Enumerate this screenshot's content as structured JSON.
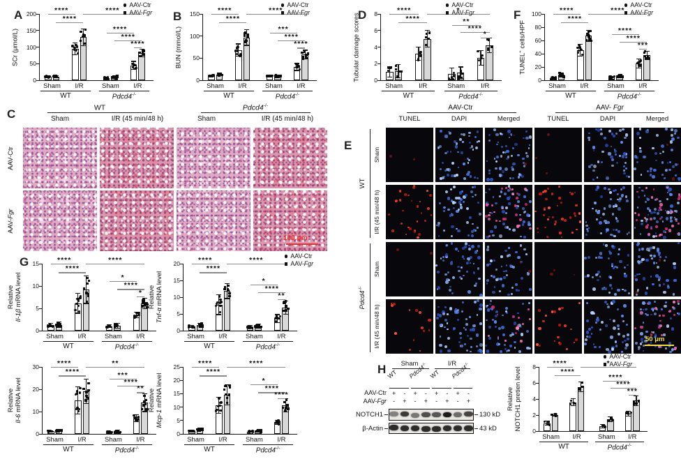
{
  "figure": {
    "bg": "#ffffff",
    "scalebar_red": "#e8332a",
    "scalebar_yellow": "#f0e040",
    "bar_ctr_fill": "#ffffff",
    "bar_fgr_fill": "#d8d8d8"
  },
  "legend": {
    "ctr_label": "AAV-Ctr",
    "fgr_prefix": "AAV-",
    "fgr_gene": "Fgr"
  },
  "xaxis": {
    "conditions": [
      "Sham",
      "I/R",
      "Sham",
      "I/R"
    ],
    "genotypes": [
      {
        "label": "WT",
        "italic": false,
        "sup": ""
      },
      {
        "label": "Pdcd4",
        "italic": true,
        "sup": "-/-"
      }
    ]
  },
  "panels": {
    "A": {
      "label": "A"
    },
    "B": {
      "label": "B"
    },
    "D": {
      "label": "D"
    },
    "F": {
      "label": "F"
    },
    "G": {
      "label": "G"
    },
    "C": {
      "label": "C",
      "group_headers": [
        {
          "label": "WT",
          "italic": false,
          "sup": ""
        },
        {
          "label": "Pdcd4",
          "italic": true,
          "sup": "-/-"
        }
      ],
      "col_headers": [
        "Sham",
        "I/R (45 min/48 h)",
        "Sham",
        "I/R (45 min/48 h)"
      ],
      "row_labels": [
        {
          "prefix": "AAV-",
          "gene": "Ctr",
          "italic": false
        },
        {
          "prefix": "AAV-",
          "gene": "Fgr",
          "italic": true
        }
      ],
      "scale_bar": "100 μm"
    },
    "E": {
      "label": "E",
      "group_headers": [
        {
          "prefix": "AAV-",
          "gene": "Ctr",
          "italic": false
        },
        {
          "prefix": "AAV- ",
          "gene": "Fgr",
          "italic": true
        }
      ],
      "channel_headers": [
        "TUNEL",
        "DAPI",
        "Merged",
        "TUNEL",
        "DAPI",
        "Merged"
      ],
      "row_groups": [
        {
          "label": "WT",
          "italic": false,
          "sup": ""
        },
        {
          "label": "Pdcd4",
          "italic": true,
          "sup": "-/-"
        }
      ],
      "row_labels": [
        "Sham",
        "I/R (45 min/48 h)",
        "Sham",
        "I/R (45 min/48 h)"
      ],
      "scale_bar": "50 μm"
    },
    "H": {
      "label": "H",
      "blot": {
        "col_groups": [
          "Sham",
          "I/R"
        ],
        "lane_groups": [
          {
            "label": "WT",
            "italic": false,
            "sup": ""
          },
          {
            "label": "Pdcd4",
            "italic": true,
            "sup": "-/-"
          },
          {
            "label": "WT",
            "italic": false,
            "sup": ""
          },
          {
            "label": "Pdcd4",
            "italic": true,
            "sup": "-/-"
          }
        ],
        "row1_label": "AAV-Ctr",
        "row2_prefix": "AAV-",
        "row2_gene": "Fgr",
        "row1_signs": [
          "+",
          "-",
          "+",
          "-",
          "+",
          "-",
          "+",
          "-"
        ],
        "row2_signs": [
          "-",
          "+",
          "-",
          "+",
          "-",
          "+",
          "-",
          "+"
        ],
        "bands": [
          {
            "label": "NOTCH1",
            "kd": "130 kD"
          },
          {
            "label": "β-Actin",
            "kd": "43 kD"
          }
        ]
      }
    }
  },
  "chart_data": [
    {
      "id": "A",
      "panel": "A",
      "type": "bar",
      "legend": true,
      "ndots": 8,
      "ylabel": [
        [
          "SCr (μmol/L)"
        ]
      ],
      "ylim": [
        0,
        200
      ],
      "yticks": [
        0,
        50,
        100,
        150,
        200
      ],
      "categories": [
        "WT Sham",
        "WT I/R",
        "Pdcd4-/- Sham",
        "Pdcd4-/- I/R"
      ],
      "series": [
        {
          "name": "AAV-Ctr",
          "values": [
            10,
            95,
            7,
            45
          ]
        },
        {
          "name": "AAV-Fgr",
          "values": [
            11,
            130,
            10,
            82
          ]
        }
      ],
      "errors": [
        [
          3,
          18,
          3,
          12
        ],
        [
          3,
          25,
          4,
          12
        ]
      ],
      "sig": [
        [
          0,
          2,
          0,
          "****"
        ],
        [
          1,
          3,
          0.13,
          "****"
        ],
        [
          3,
          7,
          0,
          "****"
        ],
        [
          4,
          6,
          0.28,
          "****"
        ],
        [
          5,
          7,
          0.4,
          "****"
        ],
        [
          6,
          7,
          0.5,
          "****"
        ]
      ]
    },
    {
      "id": "B",
      "panel": "B",
      "type": "bar",
      "legend": true,
      "ndots": 8,
      "ylabel": [
        [
          "BUN (mmol/L)"
        ]
      ],
      "ylim": [
        0,
        150
      ],
      "yticks": [
        0,
        50,
        100,
        150
      ],
      "categories": [
        "WT Sham",
        "WT I/R",
        "Pdcd4-/- Sham",
        "Pdcd4-/- I/R"
      ],
      "series": [
        {
          "name": "AAV-Ctr",
          "values": [
            10,
            68,
            10,
            30
          ]
        },
        {
          "name": "AAV-Fgr",
          "values": [
            13,
            97,
            9,
            58
          ]
        }
      ],
      "errors": [
        [
          2,
          14,
          2,
          8
        ],
        [
          3,
          18,
          2,
          10
        ]
      ],
      "sig": [
        [
          0,
          2,
          0,
          "****"
        ],
        [
          1,
          3,
          0.13,
          "****"
        ],
        [
          3,
          7,
          0,
          "****"
        ],
        [
          4,
          6,
          0.28,
          "***"
        ],
        [
          5,
          7,
          0.4,
          "****"
        ],
        [
          6,
          7,
          0.51,
          "****"
        ]
      ]
    },
    {
      "id": "D",
      "panel": "D",
      "type": "bar",
      "legend": true,
      "ndots": 5,
      "ylabel": [
        [
          "Tubular damage scores"
        ]
      ],
      "ylim": [
        0,
        8
      ],
      "yticks": [
        0,
        2,
        4,
        6,
        8
      ],
      "categories": [
        "WT Sham",
        "WT I/R",
        "Pdcd4-/- Sham",
        "Pdcd4-/- I/R"
      ],
      "series": [
        {
          "name": "AAV-Ctr",
          "values": [
            1.0,
            3.2,
            0.8,
            2.7
          ]
        },
        {
          "name": "AAV-Fgr",
          "values": [
            1.1,
            5.0,
            0.9,
            4.2
          ]
        }
      ],
      "errors": [
        [
          0.6,
          0.8,
          0.7,
          0.9
        ],
        [
          0.8,
          1.0,
          0.7,
          0.9
        ]
      ],
      "sig": [
        [
          0,
          2,
          0,
          "****"
        ],
        [
          1,
          3,
          0.13,
          "****"
        ],
        [
          3,
          7,
          0,
          "*"
        ],
        [
          4,
          6,
          0.17,
          "**"
        ],
        [
          5,
          7,
          0.27,
          "****"
        ],
        [
          6,
          7,
          0.36,
          "*"
        ]
      ]
    },
    {
      "id": "F",
      "panel": "F",
      "type": "bar",
      "legend": true,
      "ndots": 9,
      "ylabel": [
        [
          "TUNEL"
        ],
        [
          "+",
          "sup"
        ],
        [
          " cells/HPF"
        ]
      ],
      "ylim": [
        0,
        100
      ],
      "yticks": [
        0,
        20,
        40,
        60,
        80,
        100
      ],
      "categories": [
        "WT Sham",
        "WT I/R",
        "Pdcd4-/- Sham",
        "Pdcd4-/- I/R"
      ],
      "series": [
        {
          "name": "AAV-Ctr",
          "values": [
            3,
            45,
            4,
            25
          ]
        },
        {
          "name": "AAV-Fgr",
          "values": [
            8,
            67,
            6,
            38
          ]
        }
      ],
      "errors": [
        [
          2,
          9,
          2,
          7
        ],
        [
          3,
          8,
          2,
          6
        ]
      ],
      "sig": [
        [
          0,
          2,
          0,
          "****"
        ],
        [
          1,
          3,
          0.13,
          "****"
        ],
        [
          3,
          7,
          0,
          "****"
        ],
        [
          4,
          6,
          0.3,
          "****"
        ],
        [
          5,
          7,
          0.42,
          "****"
        ],
        [
          6,
          7,
          0.53,
          "***"
        ]
      ]
    },
    {
      "id": "G1",
      "panel": "G",
      "type": "bar",
      "legend": false,
      "ndots": 9,
      "ylabel": [
        [
          "Relative"
        ],
        [
          "",
          "br"
        ],
        [
          "Il-1β",
          "i"
        ],
        [
          " mRNA level"
        ]
      ],
      "ylim": [
        0,
        15
      ],
      "yticks": [
        0,
        5,
        10,
        15
      ],
      "categories": [
        "WT Sham",
        "WT I/R",
        "Pdcd4-/- Sham",
        "Pdcd4-/- I/R"
      ],
      "series": [
        {
          "name": "AAV-Ctr",
          "values": [
            1.2,
            6.1,
            1.0,
            3.5
          ]
        },
        {
          "name": "AAV-Fgr",
          "values": [
            1.3,
            9.2,
            1.1,
            6.1
          ]
        }
      ],
      "errors": [
        [
          0.4,
          2.2,
          0.3,
          0.6
        ],
        [
          0.6,
          3.1,
          0.5,
          1.2
        ]
      ],
      "sig": [
        [
          0,
          2,
          0,
          "****"
        ],
        [
          1,
          3,
          0.13,
          "****"
        ],
        [
          3,
          7,
          0,
          "****"
        ],
        [
          4,
          6,
          0.26,
          "*"
        ],
        [
          5,
          7,
          0.38,
          "****"
        ],
        [
          6,
          7,
          0.49,
          "*"
        ]
      ]
    },
    {
      "id": "G2",
      "panel": "G",
      "type": "bar",
      "legend": true,
      "ndots": 9,
      "ylabel": [
        [
          "Relative"
        ],
        [
          "",
          "br"
        ],
        [
          "Tnf-α",
          "i"
        ],
        [
          " mRNA level"
        ]
      ],
      "ylim": [
        0,
        20
      ],
      "yticks": [
        0,
        5,
        10,
        15,
        20
      ],
      "categories": [
        "WT Sham",
        "WT I/R",
        "Pdcd4-/- Sham",
        "Pdcd4-/- I/R"
      ],
      "series": [
        {
          "name": "AAV-Ctr",
          "values": [
            1.2,
            7.8,
            1.1,
            3.6
          ]
        },
        {
          "name": "AAV-Fgr",
          "values": [
            1.7,
            11.8,
            1.3,
            6.9
          ]
        }
      ],
      "errors": [
        [
          0.3,
          3.0,
          0.4,
          1.2
        ],
        [
          0.5,
          2.2,
          0.6,
          2.0
        ]
      ],
      "sig": [
        [
          0,
          2,
          0,
          "****"
        ],
        [
          1,
          3,
          0.13,
          "****"
        ],
        [
          3,
          7,
          0,
          "****"
        ],
        [
          4,
          6,
          0.31,
          "*"
        ],
        [
          5,
          7,
          0.43,
          "****"
        ],
        [
          6,
          7,
          0.53,
          "**"
        ]
      ]
    },
    {
      "id": "G3",
      "panel": "G",
      "type": "bar",
      "legend": false,
      "ndots": 9,
      "ylabel": [
        [
          "Relative"
        ],
        [
          "",
          "br"
        ],
        [
          "Il-6",
          "i"
        ],
        [
          " mRNA level"
        ]
      ],
      "ylim": [
        0,
        30
      ],
      "yticks": [
        0,
        10,
        20,
        30
      ],
      "categories": [
        "WT Sham",
        "WT I/R",
        "Pdcd4-/- Sham",
        "Pdcd4-/- I/R"
      ],
      "series": [
        {
          "name": "AAV-Ctr",
          "values": [
            1.2,
            15,
            0.9,
            7
          ]
        },
        {
          "name": "AAV-Fgr",
          "values": [
            1.5,
            19,
            1.2,
            14
          ]
        }
      ],
      "errors": [
        [
          0.3,
          6,
          0.3,
          1.5
        ],
        [
          0.4,
          5.5,
          0.4,
          4
        ]
      ],
      "sig": [
        [
          0,
          2,
          0,
          "****"
        ],
        [
          1,
          3,
          0.13,
          "****"
        ],
        [
          3,
          7,
          0,
          "**"
        ],
        [
          4,
          6,
          0.18,
          "***"
        ],
        [
          5,
          7,
          0.28,
          "****"
        ],
        [
          6,
          7,
          0.38,
          "**"
        ]
      ]
    },
    {
      "id": "G4",
      "panel": "G",
      "type": "bar",
      "legend": false,
      "ndots": 9,
      "ylabel": [
        [
          "Relative"
        ],
        [
          "",
          "br"
        ],
        [
          "Mcp-1",
          "i"
        ],
        [
          " mRNA level"
        ]
      ],
      "ylim": [
        0,
        25
      ],
      "yticks": [
        0,
        5,
        10,
        15,
        20,
        25
      ],
      "categories": [
        "WT Sham",
        "WT I/R",
        "Pdcd4-/- Sham",
        "Pdcd4-/- I/R"
      ],
      "series": [
        {
          "name": "AAV-Ctr",
          "values": [
            1.1,
            10.6,
            0.9,
            4.3
          ]
        },
        {
          "name": "AAV-Fgr",
          "values": [
            1.6,
            14.5,
            1.0,
            10.7
          ]
        }
      ],
      "errors": [
        [
          0.3,
          3.0,
          0.2,
          0.8
        ],
        [
          0.4,
          3.8,
          0.3,
          2.5
        ]
      ],
      "sig": [
        [
          0,
          2,
          0,
          "****"
        ],
        [
          1,
          3,
          0.13,
          "****"
        ],
        [
          3,
          7,
          0,
          "****"
        ],
        [
          4,
          6,
          0.26,
          "*"
        ],
        [
          5,
          7,
          0.38,
          "****"
        ],
        [
          6,
          7,
          0.47,
          "****"
        ]
      ]
    },
    {
      "id": "H",
      "panel": "H",
      "type": "bar",
      "legend": true,
      "ndots": 4,
      "ylabel": [
        [
          "Relative"
        ],
        [
          "",
          "br"
        ],
        [
          "NOTCH1 pretien level"
        ]
      ],
      "ylim": [
        0,
        8
      ],
      "yticks": [
        0,
        2,
        4,
        6,
        8
      ],
      "categories": [
        "WT Sham",
        "WT I/R",
        "Pdcd4-/- Sham",
        "Pdcd4-/- I/R"
      ],
      "series": [
        {
          "name": "AAV-Ctr",
          "values": [
            1.0,
            3.6,
            0.6,
            2.2
          ]
        },
        {
          "name": "AAV-Fgr",
          "values": [
            2.0,
            5.5,
            1.5,
            3.8
          ]
        }
      ],
      "errors": [
        [
          0.25,
          0.45,
          0.2,
          0.3
        ],
        [
          0.15,
          0.6,
          0.3,
          0.6
        ]
      ],
      "sig": [
        [
          0,
          2,
          0,
          "****"
        ],
        [
          1,
          3,
          0.13,
          "****"
        ],
        [
          3,
          7,
          0,
          "*"
        ],
        [
          4,
          6,
          0.22,
          "****"
        ],
        [
          5,
          7,
          0.33,
          "****"
        ],
        [
          6,
          7,
          0.43,
          "***"
        ]
      ]
    }
  ]
}
